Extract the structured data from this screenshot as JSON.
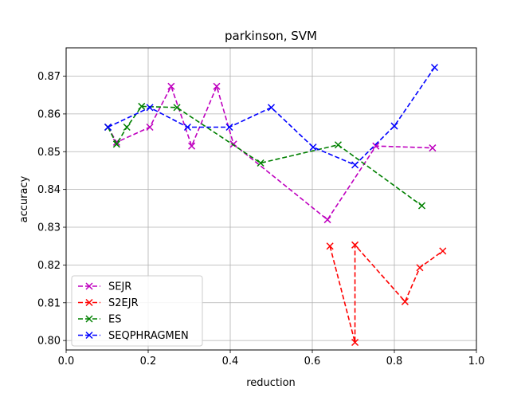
{
  "chart_data": {
    "type": "line",
    "title": "parkinson, SVM",
    "xlabel": "reduction",
    "ylabel": "accuracy",
    "xlim": [
      0.0,
      1.0
    ],
    "ylim": [
      0.7975,
      0.8775
    ],
    "x_ticks": [
      0.0,
      0.2,
      0.4,
      0.6,
      0.8,
      1.0
    ],
    "x_tick_labels": [
      "0.0",
      "0.2",
      "0.4",
      "0.6",
      "0.8",
      "1.0"
    ],
    "y_ticks": [
      0.8,
      0.81,
      0.82,
      0.83,
      0.84,
      0.85,
      0.86,
      0.87
    ],
    "y_tick_labels": [
      "0.80",
      "0.81",
      "0.82",
      "0.83",
      "0.84",
      "0.85",
      "0.86",
      "0.87"
    ],
    "grid": true,
    "legend_position": "lower-left",
    "series": [
      {
        "name": "SEJR",
        "color": "#bf00bf",
        "marker": "x",
        "linestyle": "dashed",
        "points": [
          [
            0.102,
            0.8565
          ],
          [
            0.123,
            0.8525
          ],
          [
            0.204,
            0.8565
          ],
          [
            0.256,
            0.8673
          ],
          [
            0.306,
            0.8515
          ],
          [
            0.367,
            0.8673
          ],
          [
            0.408,
            0.852
          ],
          [
            0.637,
            0.832
          ],
          [
            0.755,
            0.8515
          ],
          [
            0.893,
            0.851
          ]
        ]
      },
      {
        "name": "S2EJR",
        "color": "#ff0000",
        "marker": "x",
        "linestyle": "dashed",
        "points": [
          [
            0.643,
            0.825
          ],
          [
            0.704,
            0.7995
          ],
          [
            0.704,
            0.8253
          ],
          [
            0.826,
            0.8103
          ],
          [
            0.862,
            0.8193
          ],
          [
            0.918,
            0.8237
          ]
        ]
      },
      {
        "name": "ES",
        "color": "#008000",
        "marker": "x",
        "linestyle": "dashed",
        "points": [
          [
            0.102,
            0.8565
          ],
          [
            0.123,
            0.852
          ],
          [
            0.148,
            0.8565
          ],
          [
            0.184,
            0.862
          ],
          [
            0.27,
            0.8617
          ],
          [
            0.474,
            0.847
          ],
          [
            0.663,
            0.8518
          ],
          [
            0.867,
            0.8357
          ]
        ]
      },
      {
        "name": "SEQPHRAGMEN",
        "color": "#0000ff",
        "marker": "x",
        "linestyle": "dashed",
        "points": [
          [
            0.102,
            0.8565
          ],
          [
            0.204,
            0.8617
          ],
          [
            0.296,
            0.8565
          ],
          [
            0.398,
            0.8565
          ],
          [
            0.5,
            0.8617
          ],
          [
            0.602,
            0.8512
          ],
          [
            0.704,
            0.8465
          ],
          [
            0.8,
            0.8568
          ],
          [
            0.898,
            0.8723
          ]
        ]
      }
    ]
  }
}
